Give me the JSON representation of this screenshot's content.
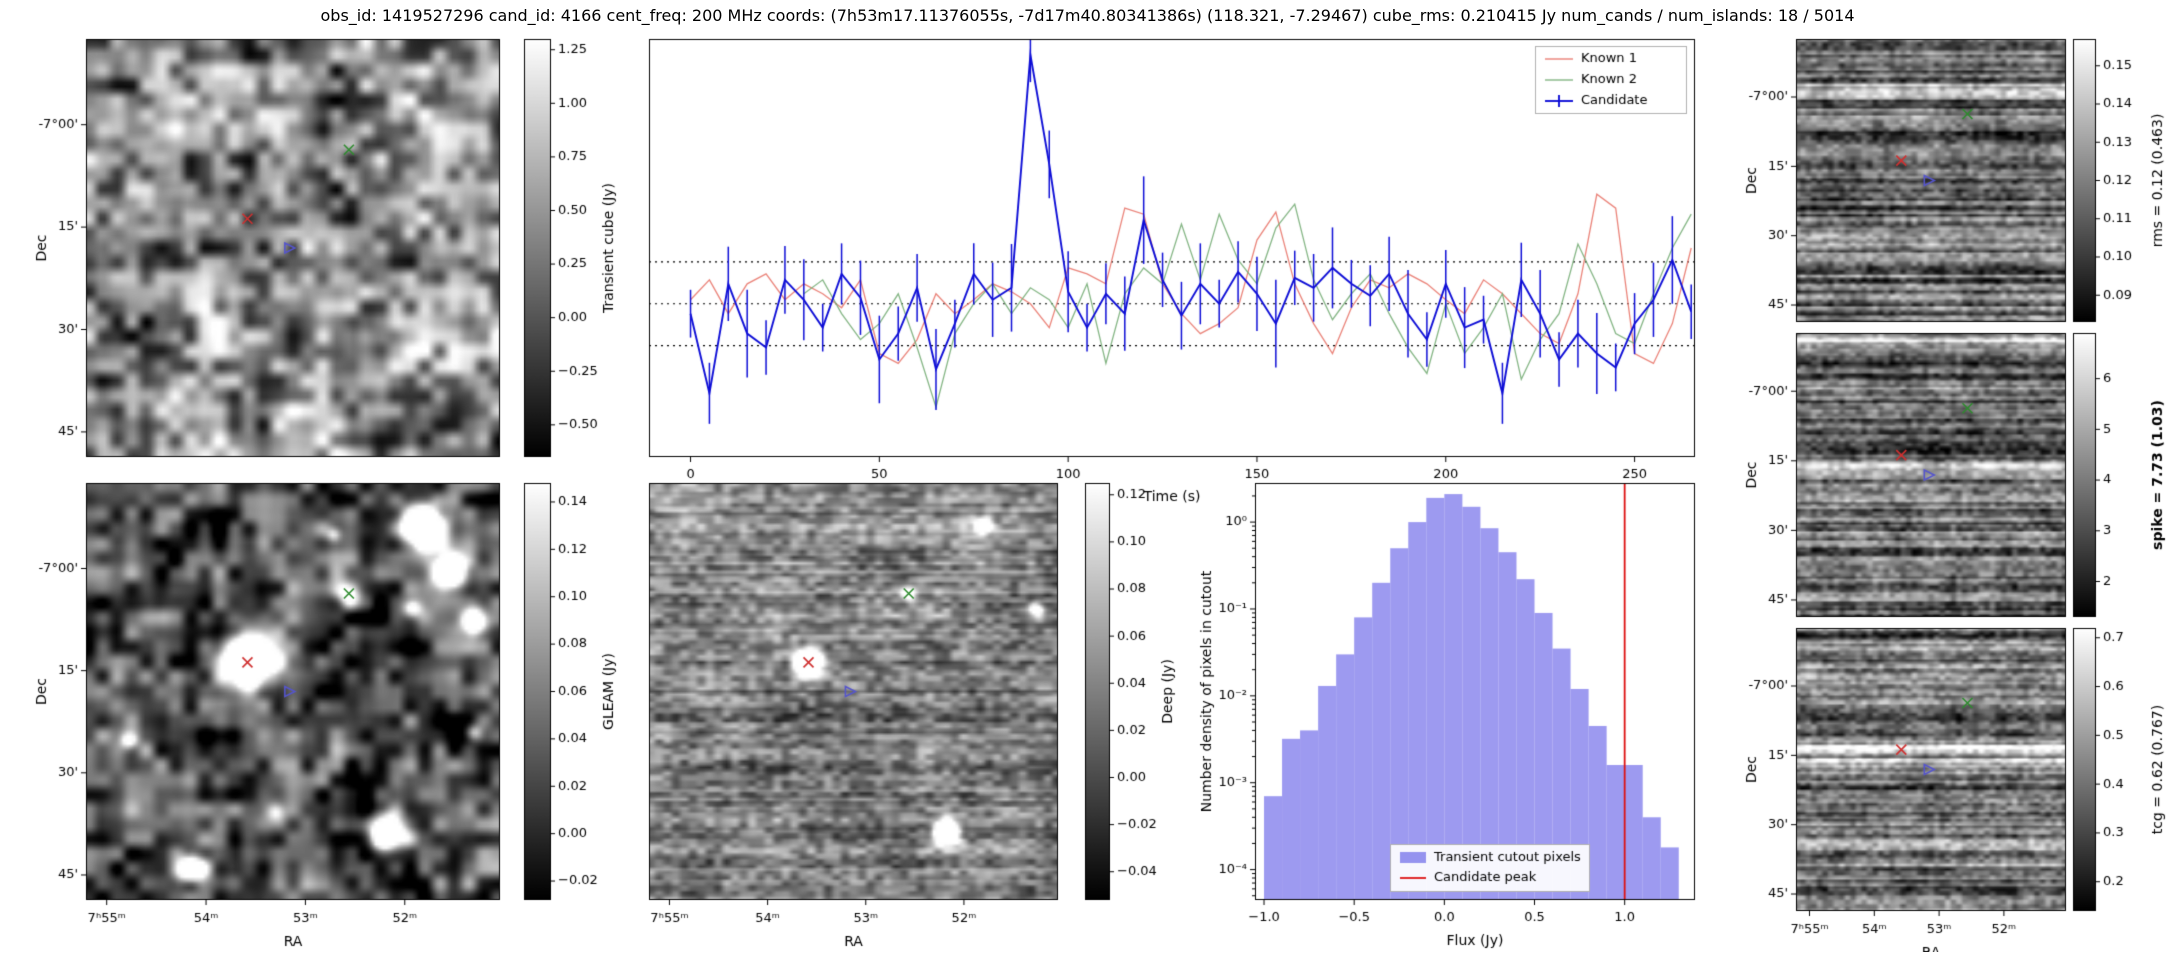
{
  "title": "obs_id: 1419527296 cand_id: 4166 cent_freq: 200 MHz coords: (7h53m17.11376055s, -7d17m40.80341386s) (118.321, -7.29467) cube_rms: 0.210415 Jy num_cands / num_islands: 18 / 5014",
  "axis": {
    "dec_label": "Dec",
    "ra_label": "RA",
    "dec_ticks": [
      "-7°00'",
      "15'",
      "30'",
      "45'"
    ],
    "ra_ticks": [
      "7ʰ55ᵐ",
      "54ᵐ",
      "53ᵐ",
      "52ᵐ"
    ]
  },
  "markers": [
    {
      "name": "known1-marker",
      "shape": "x",
      "color": "#d03030",
      "fx": 0.39,
      "fy": 0.43
    },
    {
      "name": "known2-marker",
      "shape": "x",
      "color": "#2e8b2e",
      "fx": 0.635,
      "fy": 0.265
    },
    {
      "name": "candidate-marker",
      "shape": "triangle",
      "color": "#5555cc",
      "fx": 0.49,
      "fy": 0.5
    }
  ],
  "colorbars": {
    "transient": {
      "label": "Transient cube (Jy)",
      "vmin": -0.65,
      "vmax": 1.3,
      "tick_values": [
        1.25,
        1.0,
        0.75,
        0.5,
        0.25,
        0.0,
        -0.25,
        -0.5
      ],
      "tick_labels": [
        "1.25",
        "1.00",
        "0.75",
        "0.50",
        "0.25",
        "0.00",
        "−0.25",
        "−0.50"
      ]
    },
    "gleam": {
      "label": "GLEAM (Jy)",
      "vmin": -0.028,
      "vmax": 0.148,
      "tick_values": [
        0.14,
        0.12,
        0.1,
        0.08,
        0.06,
        0.04,
        0.02,
        0.0,
        -0.02
      ],
      "tick_labels": [
        "0.14",
        "0.12",
        "0.10",
        "0.08",
        "0.06",
        "0.04",
        "0.02",
        "0.00",
        "−0.02"
      ]
    },
    "deep": {
      "label": "Deep (Jy)",
      "vmin": -0.052,
      "vmax": 0.125,
      "tick_values": [
        0.12,
        0.1,
        0.08,
        0.06,
        0.04,
        0.02,
        0.0,
        -0.02,
        -0.04
      ],
      "tick_labels": [
        "0.12",
        "0.10",
        "0.08",
        "0.06",
        "0.04",
        "0.02",
        "0.00",
        "−0.02",
        "−0.04"
      ]
    },
    "rms": {
      "label": "rms = 0.12 (0.463)",
      "bold": false,
      "vmin": 0.083,
      "vmax": 0.157,
      "tick_values": [
        0.15,
        0.14,
        0.13,
        0.12,
        0.11,
        0.1,
        0.09
      ],
      "tick_labels": [
        "0.15",
        "0.14",
        "0.13",
        "0.12",
        "0.11",
        "0.10",
        "0.09"
      ]
    },
    "spike": {
      "label": "spike = 7.73 (1.03)",
      "bold": true,
      "vmin": 1.3,
      "vmax": 6.9,
      "tick_values": [
        6,
        5,
        4,
        3,
        2
      ],
      "tick_labels": [
        "6",
        "5",
        "4",
        "3",
        "2"
      ]
    },
    "tcg": {
      "label": "tcg = 0.62 (0.767)",
      "bold": false,
      "vmin": 0.14,
      "vmax": 0.72,
      "tick_values": [
        0.7,
        0.6,
        0.5,
        0.4,
        0.3,
        0.2
      ],
      "tick_labels": [
        "0.7",
        "0.6",
        "0.5",
        "0.4",
        "0.3",
        "0.2"
      ]
    }
  },
  "chart_data": [
    {
      "id": "lightcurve",
      "type": "line",
      "xlabel": "Time (s)",
      "ylabel": "",
      "xlim": [
        -11,
        266
      ],
      "ylim": [
        -0.77,
        1.33
      ],
      "xticks": [
        0,
        50,
        100,
        150,
        200,
        250
      ],
      "xtick_labels": [
        "0",
        "50",
        "100",
        "150",
        "200",
        "250"
      ],
      "hlines": [
        0.21,
        0.0,
        -0.21
      ],
      "legend_position": "top-right",
      "x": [
        0,
        5,
        10,
        15,
        20,
        25,
        30,
        35,
        40,
        45,
        50,
        55,
        60,
        65,
        70,
        75,
        80,
        85,
        90,
        95,
        100,
        105,
        110,
        115,
        120,
        125,
        130,
        135,
        140,
        145,
        150,
        155,
        160,
        165,
        170,
        175,
        180,
        185,
        190,
        195,
        200,
        205,
        210,
        215,
        220,
        225,
        230,
        235,
        240,
        245,
        250,
        255,
        260,
        265
      ],
      "series": [
        {
          "name": "Known 1",
          "color": "#e8756a",
          "values": [
            0.02,
            0.12,
            -0.05,
            0.1,
            0.15,
            0.02,
            0.1,
            0.05,
            -0.02,
            0.12,
            -0.25,
            -0.3,
            -0.18,
            0.05,
            -0.05,
            0.02,
            0.1,
            0.06,
            0.0,
            -0.12,
            0.18,
            0.15,
            0.1,
            0.48,
            0.45,
            0.1,
            -0.05,
            -0.15,
            -0.1,
            -0.02,
            0.32,
            0.46,
            0.1,
            -0.1,
            -0.25,
            -0.02,
            0.12,
            0.08,
            0.15,
            0.1,
            0.02,
            -0.05,
            0.12,
            0.05,
            -0.05,
            -0.15,
            -0.2,
            0.05,
            0.55,
            0.48,
            -0.25,
            -0.3,
            -0.1,
            0.28
          ]
        },
        {
          "name": "Known 2",
          "color": "#77ad77",
          "values": [
            null,
            null,
            null,
            null,
            null,
            null,
            0.05,
            0.12,
            -0.05,
            -0.18,
            -0.1,
            0.05,
            -0.22,
            -0.52,
            -0.15,
            0.0,
            0.1,
            -0.05,
            0.08,
            0.02,
            -0.12,
            0.1,
            -0.3,
            0.05,
            0.18,
            0.1,
            0.4,
            0.12,
            0.45,
            0.22,
            0.1,
            0.38,
            0.5,
            0.12,
            -0.08,
            0.05,
            0.15,
            -0.05,
            -0.22,
            -0.35,
            0.0,
            -0.25,
            -0.12,
            0.05,
            -0.38,
            -0.18,
            -0.05,
            0.3,
            0.1,
            -0.15,
            -0.2,
            0.05,
            0.28,
            0.45
          ]
        },
        {
          "name": "Candidate",
          "color": "#0d0dd6",
          "yerr": 0.17,
          "values": [
            -0.05,
            -0.45,
            0.1,
            -0.15,
            -0.22,
            0.12,
            0.02,
            -0.12,
            0.15,
            0.03,
            -0.28,
            -0.15,
            0.08,
            -0.33,
            -0.1,
            0.15,
            0.02,
            0.08,
            1.25,
            0.7,
            0.06,
            -0.12,
            0.05,
            -0.05,
            0.42,
            0.12,
            -0.06,
            0.1,
            0.0,
            0.16,
            0.05,
            -0.1,
            0.13,
            0.08,
            0.18,
            0.1,
            0.04,
            0.15,
            -0.05,
            -0.18,
            0.1,
            -0.12,
            -0.08,
            -0.45,
            0.12,
            -0.05,
            -0.28,
            -0.15,
            -0.25,
            -0.32,
            -0.1,
            0.02,
            0.22,
            -0.04
          ]
        }
      ]
    },
    {
      "id": "flux_histogram",
      "type": "bar",
      "xlabel": "Flux (Jy)",
      "ylabel": "Number density of pixels in cutout",
      "xlim": [
        -1.05,
        1.39
      ],
      "ylog": true,
      "ylim_log": [
        -4.35,
        0.45
      ],
      "bin_start": -1.0,
      "bin_width": 0.1,
      "bar_color": "#8481ec",
      "values": [
        0.0007,
        0.0032,
        0.004,
        0.013,
        0.03,
        0.08,
        0.2,
        0.5,
        1.0,
        1.9,
        2.1,
        1.5,
        0.85,
        0.45,
        0.22,
        0.09,
        0.035,
        0.012,
        0.0045,
        0.0016,
        0.0016,
        0.0004,
        0.00018
      ],
      "vline": {
        "x": 1.0,
        "color": "#dd1111"
      },
      "xticks": [
        -1.0,
        -0.5,
        0.0,
        0.5,
        1.0
      ],
      "xtick_labels": [
        "−1.0",
        "−0.5",
        "0.0",
        "0.5",
        "1.0"
      ],
      "ytick_exponents": [
        0,
        -1,
        -2,
        -3,
        -4
      ],
      "ytick_labels": [
        "10⁰",
        "10⁻¹",
        "10⁻²",
        "10⁻³",
        "10⁻⁴"
      ],
      "legend": [
        "Transient cutout pixels",
        "Candidate peak"
      ]
    }
  ]
}
